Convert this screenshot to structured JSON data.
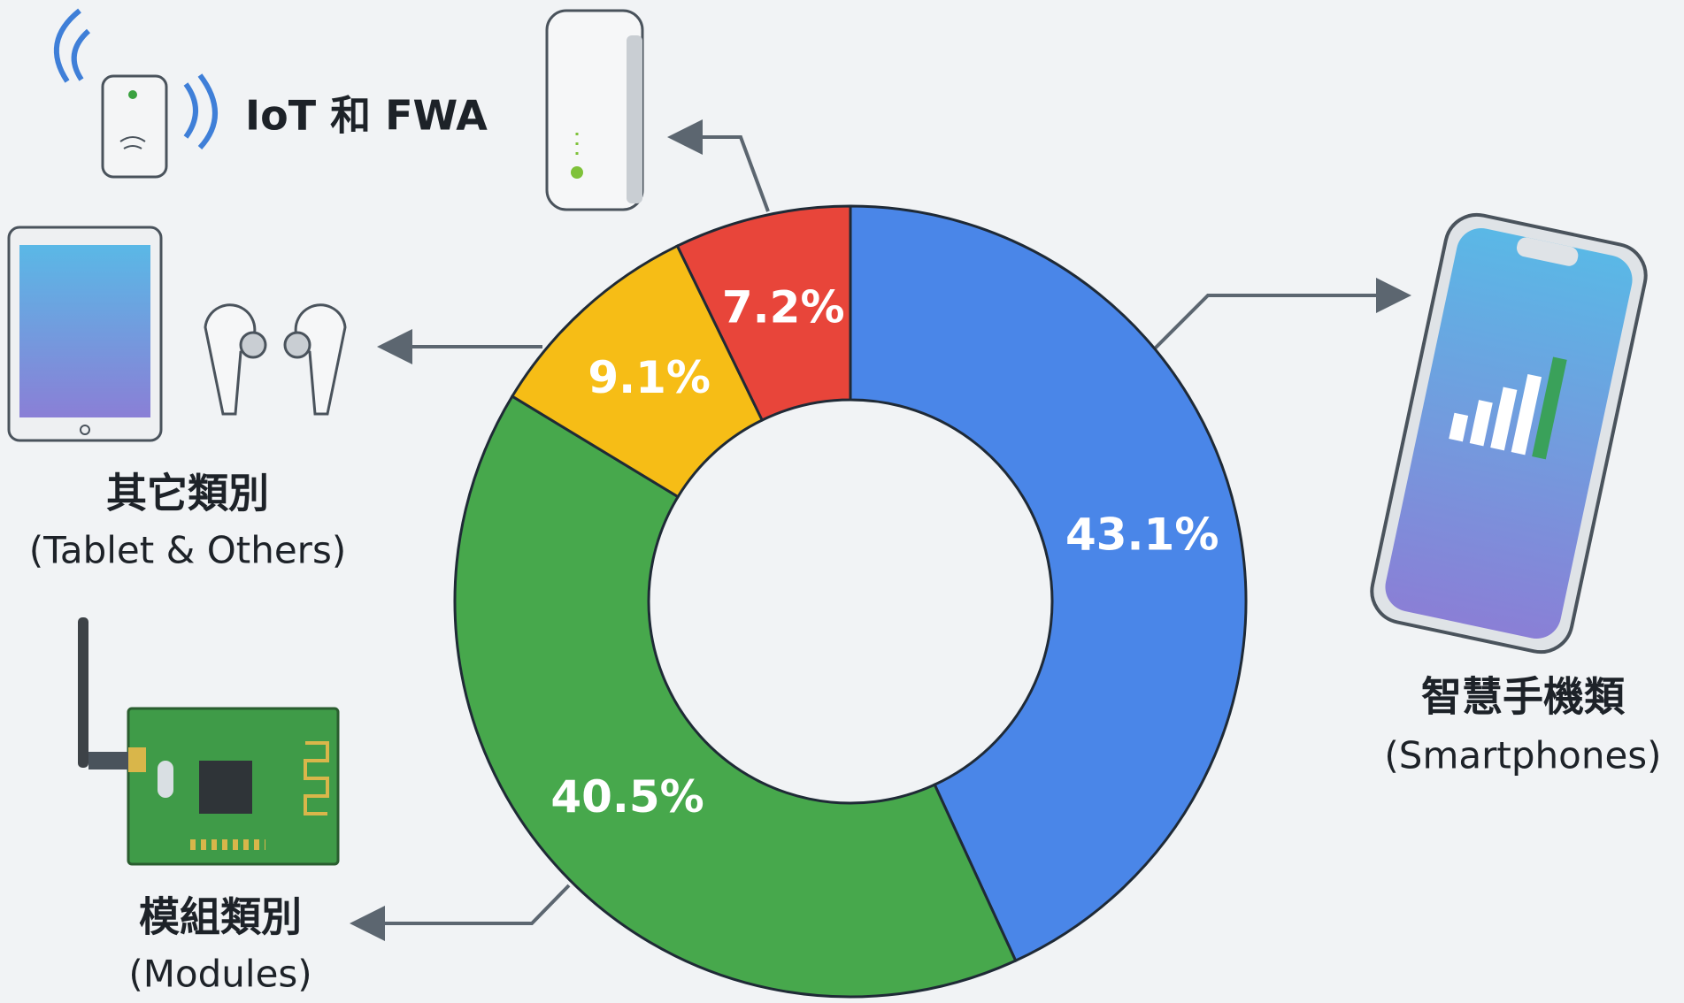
{
  "chart_data": {
    "type": "donut",
    "categories": [
      "智慧手機類",
      "模組類別",
      "其它類別",
      "IoT 和 FWA"
    ],
    "sublabels": [
      "(Smartphones)",
      "(Modules)",
      "(Tablet & Others)",
      null
    ],
    "values": [
      43.1,
      40.5,
      9.1,
      7.2
    ],
    "value_labels": [
      "43.1%",
      "40.5%",
      "9.1%",
      "7.2%"
    ],
    "colors": [
      "#4a86e8",
      "#47a84c",
      "#f6bd16",
      "#e8453a"
    ]
  }
}
